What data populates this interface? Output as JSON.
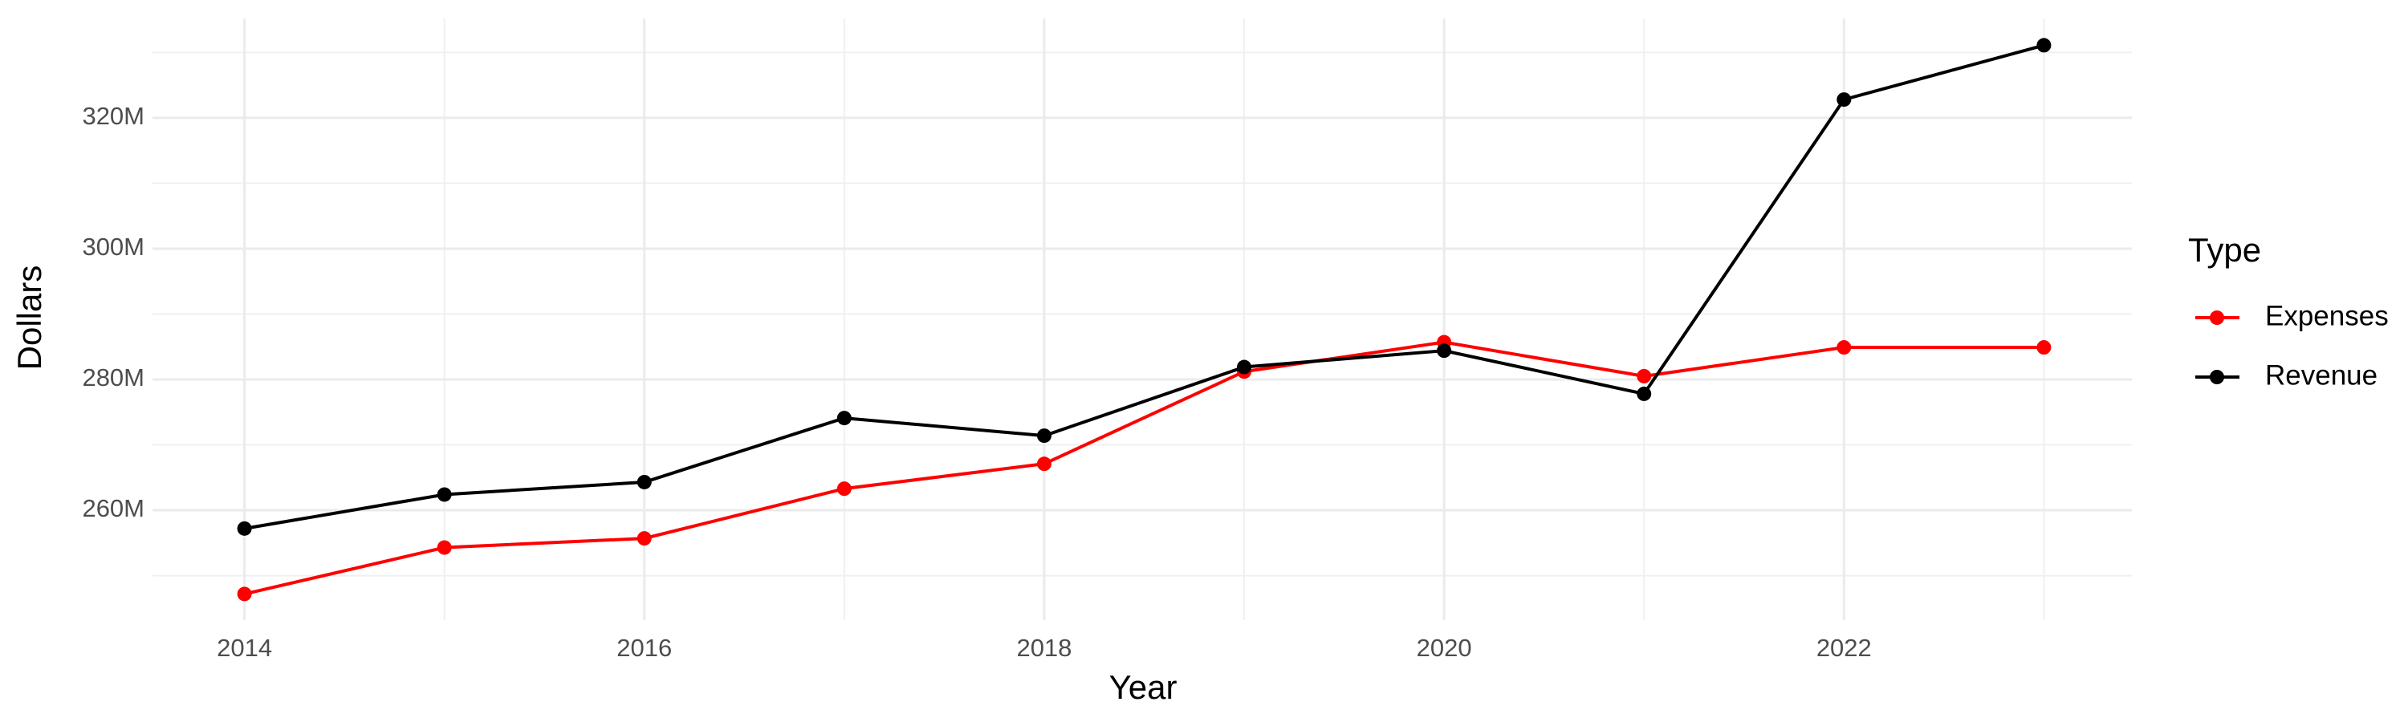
{
  "chart_data": {
    "type": "line",
    "x_label": "Year",
    "y_label": "Dollars",
    "legend_title": "Type",
    "legend_position": "right",
    "grid": true,
    "x": [
      2014,
      2015,
      2016,
      2017,
      2018,
      2019,
      2020,
      2021,
      2022,
      2023
    ],
    "series": [
      {
        "name": "Expenses",
        "color": "#ff0000",
        "values": [
          247200000,
          254300000,
          255700000,
          263300000,
          267100000,
          281200000,
          285700000,
          280500000,
          284900000,
          284900000
        ]
      },
      {
        "name": "Revenue",
        "color": "#000000",
        "values": [
          257200000,
          262400000,
          264300000,
          274100000,
          271400000,
          281900000,
          284400000,
          277800000,
          322800000,
          331100000
        ]
      }
    ],
    "xlim": [
      2013.54,
      2023.44
    ],
    "xticks": [
      2014,
      2016,
      2018,
      2020,
      2022
    ],
    "xminorticks": [
      2015,
      2017,
      2019,
      2021,
      2023
    ],
    "ylim": [
      243200000,
      335200000
    ],
    "yticks": [
      {
        "value": 260000000,
        "label": "260M"
      },
      {
        "value": 280000000,
        "label": "280M"
      },
      {
        "value": 300000000,
        "label": "300M"
      },
      {
        "value": 320000000,
        "label": "320M"
      }
    ],
    "yminorticks": [
      250000000,
      270000000,
      290000000,
      310000000,
      330000000
    ]
  }
}
